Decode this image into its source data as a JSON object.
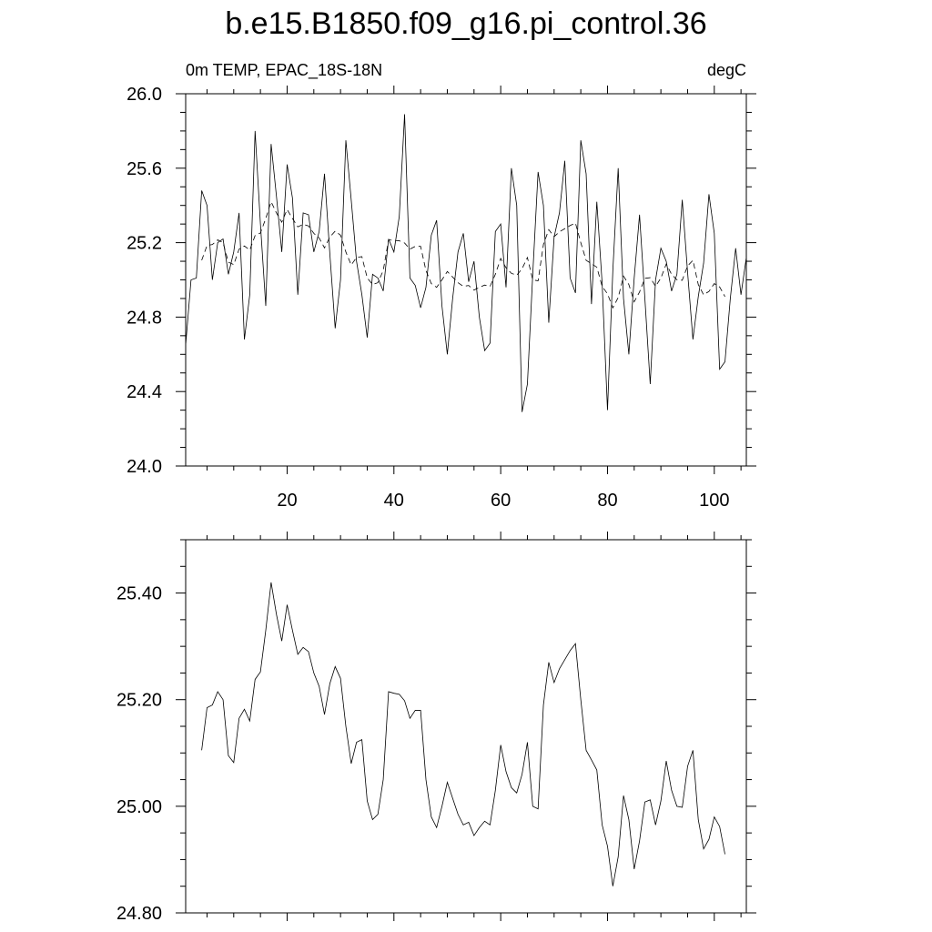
{
  "title": "b.e15.B1850.f09_g16.pi_control.36",
  "chart_data": [
    {
      "type": "line",
      "left_label": "0m TEMP, EPAC_18S-18N",
      "right_label": "degC",
      "xlim": [
        1,
        106
      ],
      "ylim": [
        24.0,
        26.0
      ],
      "x_ticks": [
        20,
        40,
        60,
        80,
        100
      ],
      "x_tick_labels": [
        "20",
        "40",
        "60",
        "80",
        "100"
      ],
      "y_ticks": [
        24.0,
        24.4,
        24.8,
        25.2,
        25.6,
        26.0
      ],
      "y_tick_labels": [
        "24.0",
        "24.4",
        "24.8",
        "25.2",
        "25.6",
        "26.0"
      ],
      "series": [
        {
          "style": "solid",
          "x_start": 1,
          "values": [
            24.65,
            25.0,
            25.01,
            25.48,
            25.4,
            25.0,
            25.2,
            25.22,
            25.03,
            25.15,
            25.36,
            24.68,
            24.92,
            25.8,
            25.3,
            24.86,
            25.73,
            25.45,
            25.15,
            25.62,
            25.44,
            24.92,
            25.36,
            25.35,
            25.15,
            25.26,
            25.57,
            25.14,
            24.74,
            25.0,
            25.75,
            25.43,
            25.1,
            24.92,
            24.69,
            25.03,
            25.01,
            24.94,
            25.22,
            25.15,
            25.34,
            25.89,
            25.01,
            24.97,
            24.85,
            24.96,
            25.24,
            25.32,
            24.86,
            24.6,
            24.9,
            25.15,
            25.25,
            24.99,
            25.1,
            24.8,
            24.62,
            24.66,
            25.26,
            25.3,
            24.96,
            25.6,
            25.4,
            24.29,
            24.44,
            25.03,
            25.58,
            25.4,
            24.77,
            25.23,
            25.36,
            25.64,
            25.01,
            24.93,
            25.75,
            25.57,
            24.87,
            25.42,
            24.98,
            24.3,
            25.05,
            25.6,
            24.9,
            24.6,
            25.01,
            25.35,
            24.9,
            24.44,
            25.0,
            25.17,
            25.1,
            24.94,
            25.03,
            25.43,
            25.04,
            24.68,
            24.91,
            25.09,
            25.46,
            25.25,
            24.52,
            24.56,
            24.9,
            25.17,
            24.92,
            25.12
          ]
        },
        {
          "style": "dashed",
          "x_start": 4,
          "values": [
            25.105,
            25.185,
            25.19,
            25.215,
            25.2,
            25.095,
            25.082,
            25.165,
            25.182,
            25.16,
            25.238,
            25.252,
            25.33,
            25.42,
            25.36,
            25.31,
            25.378,
            25.33,
            25.285,
            25.298,
            25.29,
            25.25,
            25.225,
            25.172,
            25.23,
            25.262,
            25.24,
            25.15,
            25.08,
            25.12,
            25.125,
            25.01,
            24.975,
            24.985,
            25.05,
            25.215,
            25.212,
            25.21,
            25.198,
            25.165,
            25.18,
            25.18,
            25.05,
            24.98,
            24.96,
            25.0,
            25.045,
            25.015,
            24.985,
            24.965,
            24.97,
            24.945,
            24.96,
            24.972,
            24.965,
            25.03,
            25.115,
            25.065,
            25.035,
            25.025,
            25.06,
            25.12,
            25.0,
            24.995,
            25.19,
            25.27,
            25.232,
            25.258,
            25.275,
            25.292,
            25.305,
            25.2,
            25.105,
            25.087,
            25.068,
            24.965,
            24.925,
            24.85,
            24.905,
            25.02,
            24.975,
            24.882,
            24.935,
            25.008,
            25.012,
            24.965,
            25.01,
            25.085,
            25.03,
            25.0,
            24.998,
            25.075,
            25.105,
            24.975,
            24.92,
            24.938,
            24.98,
            24.962,
            24.91
          ]
        }
      ]
    },
    {
      "type": "line",
      "xlim": [
        1,
        106
      ],
      "ylim": [
        24.8,
        25.5
      ],
      "x_ticks": [
        20,
        40,
        60,
        80,
        100
      ],
      "y_ticks": [
        24.8,
        25.0,
        25.2,
        25.4
      ],
      "y_tick_labels": [
        "24.80",
        "25.00",
        "25.20",
        "25.40"
      ],
      "series": [
        {
          "style": "solid",
          "x_start": 4,
          "values": [
            25.105,
            25.185,
            25.19,
            25.215,
            25.2,
            25.095,
            25.082,
            25.165,
            25.182,
            25.16,
            25.238,
            25.252,
            25.33,
            25.42,
            25.36,
            25.31,
            25.378,
            25.33,
            25.285,
            25.298,
            25.29,
            25.25,
            25.225,
            25.172,
            25.23,
            25.262,
            25.24,
            25.15,
            25.08,
            25.12,
            25.125,
            25.01,
            24.975,
            24.985,
            25.05,
            25.215,
            25.212,
            25.21,
            25.198,
            25.165,
            25.18,
            25.18,
            25.05,
            24.98,
            24.96,
            25.0,
            25.045,
            25.015,
            24.985,
            24.965,
            24.97,
            24.945,
            24.96,
            24.972,
            24.965,
            25.03,
            25.115,
            25.065,
            25.035,
            25.025,
            25.06,
            25.12,
            25.0,
            24.995,
            25.19,
            25.27,
            25.232,
            25.258,
            25.275,
            25.292,
            25.305,
            25.2,
            25.105,
            25.087,
            25.068,
            24.965,
            24.925,
            24.85,
            24.905,
            25.02,
            24.975,
            24.882,
            24.935,
            25.008,
            25.012,
            24.965,
            25.01,
            25.085,
            25.03,
            25.0,
            24.998,
            25.075,
            25.105,
            24.975,
            24.92,
            24.938,
            24.98,
            24.962,
            24.91
          ]
        }
      ]
    }
  ]
}
